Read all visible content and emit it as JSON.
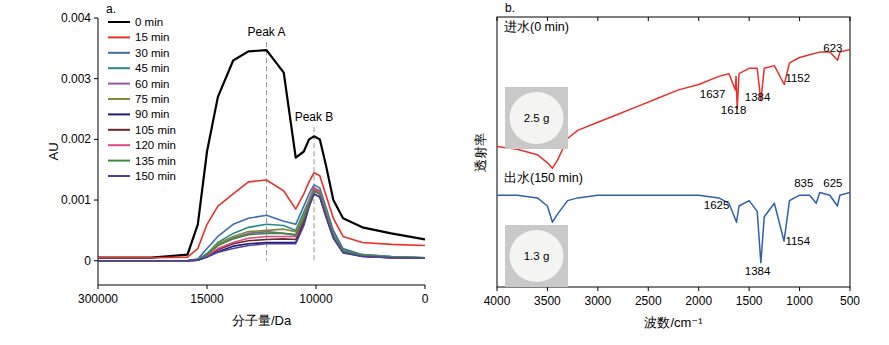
{
  "chart_data": [
    {
      "type": "line",
      "panel_label": "a.",
      "x_label": "分子量/Da",
      "y_label": "AU",
      "xlim": [
        300000,
        0
      ],
      "xticks": [
        300000,
        15000,
        10000,
        0
      ],
      "ylim": [
        -0.0004,
        0.004
      ],
      "yticks": [
        0,
        0.001,
        0.002,
        0.003,
        0.004
      ],
      "grid": false,
      "legend": "upper left",
      "x": [
        300000,
        160000,
        66000,
        39000,
        15000,
        14500,
        13800,
        13100,
        12270,
        11480,
        10930,
        10560,
        10320,
        10090,
        9650,
        9120,
        8410,
        7520,
        5750,
        3100,
        0
      ],
      "series": [
        {
          "name": "0 min",
          "color": "#000000",
          "values": [
            5e-05,
            5e-05,
            0.0001,
            0.0006,
            0.0018,
            0.0027,
            0.0033,
            0.00345,
            0.00347,
            0.0031,
            0.0017,
            0.0018,
            0.002,
            0.00205,
            0.002,
            0.0016,
            0.001,
            0.0007,
            0.00055,
            0.00045,
            0.00035
          ]
        },
        {
          "name": "15 min",
          "color": "#e8312a",
          "values": [
            5e-05,
            5e-05,
            6e-05,
            0.0002,
            0.0006,
            0.0009,
            0.0011,
            0.0013,
            0.00133,
            0.00115,
            0.00085,
            0.0011,
            0.0013,
            0.00145,
            0.0014,
            0.0011,
            0.0007,
            0.0004,
            0.0003,
            0.00027,
            0.00025
          ]
        },
        {
          "name": "30 min",
          "color": "#3a6fb0",
          "values": [
            0,
            0,
            0,
            3e-05,
            0.0002,
            0.0004,
            0.0006,
            0.0007,
            0.00075,
            0.00065,
            0.0006,
            0.0009,
            0.0011,
            0.00125,
            0.0012,
            0.0009,
            0.0005,
            0.0002,
            0.0001,
            7e-05,
            5e-05
          ]
        },
        {
          "name": "45 min",
          "color": "#2a8a8a",
          "values": [
            0,
            0,
            0,
            2e-05,
            0.00012,
            0.0003,
            0.00045,
            0.00055,
            0.0006,
            0.00058,
            0.0005,
            0.0008,
            0.001,
            0.0012,
            0.00115,
            0.00085,
            0.00045,
            0.00018,
            0.0001,
            7e-05,
            5e-05
          ]
        },
        {
          "name": "60 min",
          "color": "#8c5aa0",
          "values": [
            0,
            0,
            0,
            2e-05,
            0.0001,
            0.00025,
            0.00038,
            0.00045,
            0.00048,
            0.00045,
            0.00042,
            0.0007,
            0.00095,
            0.00118,
            0.00113,
            0.0008,
            0.0004,
            0.00015,
            8e-05,
            6e-05,
            4e-05
          ]
        },
        {
          "name": "75 min",
          "color": "#7f8a3a",
          "values": [
            0,
            0,
            0,
            2e-05,
            0.0001,
            0.00028,
            0.0004,
            0.00048,
            0.0005,
            0.00052,
            0.00048,
            0.00075,
            0.001,
            0.0012,
            0.00115,
            0.00085,
            0.00042,
            0.00016,
            9e-05,
            6e-05,
            5e-05
          ]
        },
        {
          "name": "90 min",
          "color": "#1e1e6e",
          "values": [
            0,
            0,
            0,
            1e-05,
            6e-05,
            0.00015,
            0.00024,
            0.00028,
            0.0003,
            0.0003,
            0.0003,
            0.0006,
            0.0009,
            0.0011,
            0.00105,
            0.00075,
            0.00038,
            0.00014,
            7e-05,
            5e-05,
            4e-05
          ]
        },
        {
          "name": "105 min",
          "color": "#6b2a2a",
          "values": [
            0,
            0,
            0,
            1e-05,
            7e-05,
            0.00018,
            0.00028,
            0.00033,
            0.00035,
            0.00036,
            0.00035,
            0.00065,
            0.00092,
            0.00115,
            0.0011,
            0.00078,
            0.0004,
            0.00015,
            8e-05,
            5e-05,
            4e-05
          ]
        },
        {
          "name": "120 min",
          "color": "#e0458a",
          "values": [
            0,
            0,
            0,
            1e-05,
            8e-05,
            0.0002,
            0.0003,
            0.00037,
            0.0004,
            0.0004,
            0.0004,
            0.0007,
            0.00095,
            0.0012,
            0.00113,
            0.0008,
            0.0004,
            0.00015,
            8e-05,
            5e-05,
            4e-05
          ]
        },
        {
          "name": "135 min",
          "color": "#3f8a3f",
          "values": [
            0,
            0,
            0,
            2e-05,
            0.0001,
            0.00025,
            0.00036,
            0.00043,
            0.00045,
            0.00045,
            0.00043,
            0.0007,
            0.00093,
            0.00115,
            0.0011,
            0.00078,
            0.0004,
            0.00015,
            8e-05,
            6e-05,
            5e-05
          ]
        },
        {
          "name": "150 min",
          "color": "#4a3fa0",
          "values": [
            0,
            0,
            0,
            1e-05,
            6e-05,
            0.00014,
            0.0002,
            0.00025,
            0.00028,
            0.00028,
            0.00028,
            0.00058,
            0.00088,
            0.0011,
            0.00105,
            0.00074,
            0.00037,
            0.00013,
            7e-05,
            5e-05,
            4e-05
          ]
        }
      ],
      "annotations": [
        {
          "text": "Peak A",
          "x": 12270,
          "y": 0.0037
        },
        {
          "text": "Peak B",
          "x": 10090,
          "y": 0.0023
        }
      ]
    },
    {
      "type": "line",
      "panel_label": "b.",
      "x_label": "波数/cm⁻¹",
      "y_label": "透射率",
      "xlim": [
        4000,
        500
      ],
      "xticks": [
        4000,
        3500,
        3000,
        2500,
        2000,
        1500,
        1000,
        500
      ],
      "ylim": [
        0,
        100
      ],
      "tick_labels": "x",
      "grid": false,
      "series": [
        {
          "name": "进水(0 min)",
          "color": "#e8312a",
          "inset_label": "2.5 g",
          "x": [
            4000,
            3800,
            3600,
            3500,
            3450,
            3400,
            3300,
            3200,
            3000,
            2800,
            2600,
            2400,
            2200,
            2000,
            1800,
            1700,
            1637,
            1630,
            1618,
            1600,
            1500,
            1420,
            1384,
            1350,
            1250,
            1152,
            1100,
            1000,
            900,
            800,
            700,
            623,
            600,
            500
          ],
          "values": [
            52,
            51,
            49,
            46,
            44,
            47,
            55,
            58,
            61,
            64,
            67,
            70,
            73,
            75,
            78,
            79,
            73,
            78,
            66,
            79,
            81,
            81,
            69,
            81,
            82,
            75,
            83,
            85,
            86,
            87,
            87,
            84,
            87,
            88
          ]
        },
        {
          "name": "出水(150 min)",
          "color": "#2f5fae",
          "inset_label": "1.3 g",
          "x": [
            4000,
            3800,
            3600,
            3500,
            3450,
            3400,
            3300,
            3200,
            3000,
            2800,
            2600,
            2400,
            2200,
            2000,
            1800,
            1700,
            1625,
            1600,
            1500,
            1420,
            1384,
            1350,
            1250,
            1154,
            1100,
            1000,
            900,
            835,
            800,
            700,
            625,
            600,
            500
          ],
          "values": [
            34,
            34,
            33,
            30,
            24,
            27,
            32,
            33,
            34,
            34,
            34,
            34,
            34,
            34,
            33,
            31,
            24,
            30,
            32,
            28,
            9,
            26,
            31,
            17,
            32,
            34,
            34,
            31,
            35,
            34,
            30,
            34,
            35
          ]
        }
      ],
      "annotations": [
        {
          "text": "1637",
          "x": 1863,
          "y": 70
        },
        {
          "text": "1618",
          "x": 1654,
          "y": 64
        },
        {
          "text": "1384",
          "x": 1416,
          "y": 69
        },
        {
          "text": "1152",
          "x": 1018,
          "y": 76
        },
        {
          "text": "623",
          "x": 670,
          "y": 87
        },
        {
          "text": "1625",
          "x": 1823,
          "y": 29
        },
        {
          "text": "1384",
          "x": 1416,
          "y": 4.4
        },
        {
          "text": "1154",
          "x": 1018,
          "y": 15.6
        },
        {
          "text": "835",
          "x": 958,
          "y": 37
        },
        {
          "text": "625",
          "x": 670,
          "y": 37
        }
      ]
    }
  ]
}
